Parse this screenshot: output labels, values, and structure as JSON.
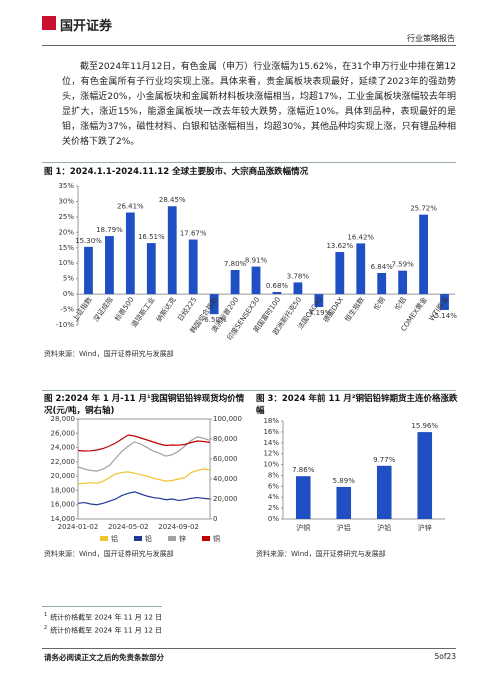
{
  "header": {
    "logo": "国开证券",
    "section": "行业策略报告"
  },
  "paragraph": "截至2024年11月12日，有色金属（申万）行业涨幅为15.62%，在31个申万行业中排在第12位，有色金属所有子行业均实现上涨。具体来看，贵金属板块表现最好，延续了2023年的强劲势头，涨幅近20%，小金属板块和金属新材料板块涨幅相当，均超17%，工业金属板块涨幅较去年明显扩大，涨近15%，能源金属板块一改去年较大跌势，涨幅近10%。具体到品种，表现最好的是钼，涨幅为37%，磁性材料、白银和钴涨幅相当，均超30%，其他品种均实现上涨，只有锂品种相关价格下跌了2%。",
  "chart_data": [
    {
      "type": "bar",
      "title": "图 1：2024.1.1-2024.11.12 全球主要股市、大宗商品涨跌幅情况",
      "source": "资料来源：Wind，国开证券研究与发展部",
      "categories": [
        "上证指数",
        "深证成指",
        "标普500",
        "道琼斯工业",
        "纳斯达克",
        "日经225",
        "韩国综合指数",
        "澳洲标普200",
        "印度SENSEX30",
        "英国富时100",
        "欧洲斯托克50",
        "法国CAC40",
        "德国DAX",
        "恒生指数",
        "伦铜",
        "伦铝",
        "COMEX黄金",
        "WTI原油"
      ],
      "values": [
        15.3,
        18.79,
        26.41,
        16.51,
        28.45,
        17.67,
        -6.5,
        7.8,
        8.91,
        0.68,
        3.78,
        -4.19,
        13.62,
        16.42,
        6.84,
        7.59,
        25.72,
        -5.14
      ],
      "value_labels": [
        "15.30%",
        "18.79%",
        "26.41%",
        "16.51%",
        "28.45%",
        "17.67%",
        "-6.50%",
        "7.80%",
        "8.91%",
        "0.68%",
        "3.78%",
        "-4.19%",
        "13.62%",
        "16.42%",
        "6.84%",
        "7.59%",
        "25.72%",
        "-5.14%"
      ],
      "color": "#1f4fc2",
      "ylim": [
        -10,
        35
      ],
      "yticks": [
        {
          "value": -10,
          "label": "-10%"
        },
        {
          "value": -5,
          "label": "-5%"
        },
        {
          "value": 0,
          "label": "0%"
        },
        {
          "value": 5,
          "label": "5%"
        },
        {
          "value": 10,
          "label": "10%"
        },
        {
          "value": 15,
          "label": "15%"
        },
        {
          "value": 20,
          "label": "20%"
        },
        {
          "value": 25,
          "label": "25%"
        },
        {
          "value": 30,
          "label": "30%"
        },
        {
          "value": 35,
          "label": "35%"
        }
      ]
    },
    {
      "type": "line",
      "title": "图 2:2024 年 1 月-11 月¹我国铜铝铅锌现货均价情况(元/吨，铜右轴)",
      "source": "资料来源：Wind，国开证券研究与发展部",
      "categories": [
        "2024-01-02",
        null,
        null,
        null,
        null,
        null,
        null,
        null,
        "2024-05-02",
        null,
        null,
        null,
        null,
        null,
        null,
        null,
        "2024-09-02",
        null,
        null,
        null,
        null,
        null
      ],
      "series": [
        {
          "name": "铝",
          "color": "#f2c12e",
          "values": [
            18900,
            19000,
            19100,
            19000,
            19300,
            19800,
            20300,
            20500,
            20600,
            20400,
            20200,
            20000,
            19700,
            19500,
            19300,
            19400,
            19600,
            19800,
            20500,
            20800,
            21000,
            20900
          ]
        },
        {
          "name": "铅",
          "color": "#1f3a93",
          "values": [
            16200,
            16300,
            16100,
            16000,
            16200,
            16500,
            16800,
            17300,
            17600,
            17800,
            17500,
            17200,
            17000,
            16900,
            16700,
            16800,
            16600,
            16700,
            16900,
            17000,
            16900,
            16800
          ]
        },
        {
          "name": "锌",
          "color": "#a0a0a0",
          "values": [
            21300,
            21000,
            20800,
            20700,
            21000,
            21500,
            22500,
            23500,
            24200,
            24800,
            24500,
            24000,
            23500,
            23200,
            22800,
            23000,
            23500,
            24200,
            25000,
            25500,
            25300,
            25000
          ]
        },
        {
          "name": "铜",
          "color": "#c00000",
          "axis": "y2",
          "values": [
            68500,
            68000,
            68200,
            69000,
            70500,
            73000,
            76000,
            80000,
            84000,
            83000,
            81000,
            79000,
            77000,
            75000,
            73500,
            74000,
            73800,
            74500,
            76500,
            78000,
            77500,
            76500
          ]
        }
      ],
      "ylim": [
        14000,
        28000
      ],
      "yticks": [
        {
          "value": 14000,
          "label": "14,000"
        },
        {
          "value": 16000,
          "label": "16,000"
        },
        {
          "value": 18000,
          "label": "18,000"
        },
        {
          "value": 20000,
          "label": "20,000"
        },
        {
          "value": 22000,
          "label": "22,000"
        },
        {
          "value": 24000,
          "label": "24,000"
        },
        {
          "value": 26000,
          "label": "26,000"
        },
        {
          "value": 28000,
          "label": "28,000"
        }
      ],
      "y2lim": [
        0,
        100000
      ],
      "y2ticks": [
        0,
        {
          "value": 20000,
          "label": "20,000"
        },
        {
          "value": 40000,
          "label": "40,000"
        },
        {
          "value": 60000,
          "label": "60,000"
        },
        {
          "value": 80000,
          "label": "80,000"
        },
        {
          "value": 100000,
          "label": "100,000"
        }
      ]
    },
    {
      "type": "bar",
      "title": "图 3：2024 年前 11 月²铜铝铅锌期货主连价格涨跌幅",
      "source": "资料来源：Wind，国开证券研究与发展部",
      "categories": [
        "沪铜",
        "沪铝",
        "沪铅",
        "沪锌"
      ],
      "values": [
        7.86,
        5.89,
        9.77,
        15.96
      ],
      "value_labels": [
        "7.86%",
        "5.89%",
        "9.77%",
        "15.96%"
      ],
      "color": "#1f4fc2",
      "ylim": [
        0,
        18
      ],
      "yticks": [
        {
          "value": 0,
          "label": "0%"
        },
        {
          "value": 2,
          "label": "2%"
        },
        {
          "value": 4,
          "label": "4%"
        },
        {
          "value": 6,
          "label": "6%"
        },
        {
          "value": 8,
          "label": "8%"
        },
        {
          "value": 10,
          "label": "10%"
        },
        {
          "value": 12,
          "label": "12%"
        },
        {
          "value": 14,
          "label": "14%"
        },
        {
          "value": 16,
          "label": "16%"
        },
        {
          "value": 18,
          "label": "18%"
        }
      ]
    }
  ],
  "footnotes": [
    {
      "marker": "1",
      "text": "统计价格截至 2024 年 11 月 12 日"
    },
    {
      "marker": "2",
      "text": "统计价格截至 2024 年 11 月 12 日"
    }
  ],
  "footer": {
    "disclaimer": "请务必阅读正文之后的免责条款部分",
    "page": "5of23"
  }
}
